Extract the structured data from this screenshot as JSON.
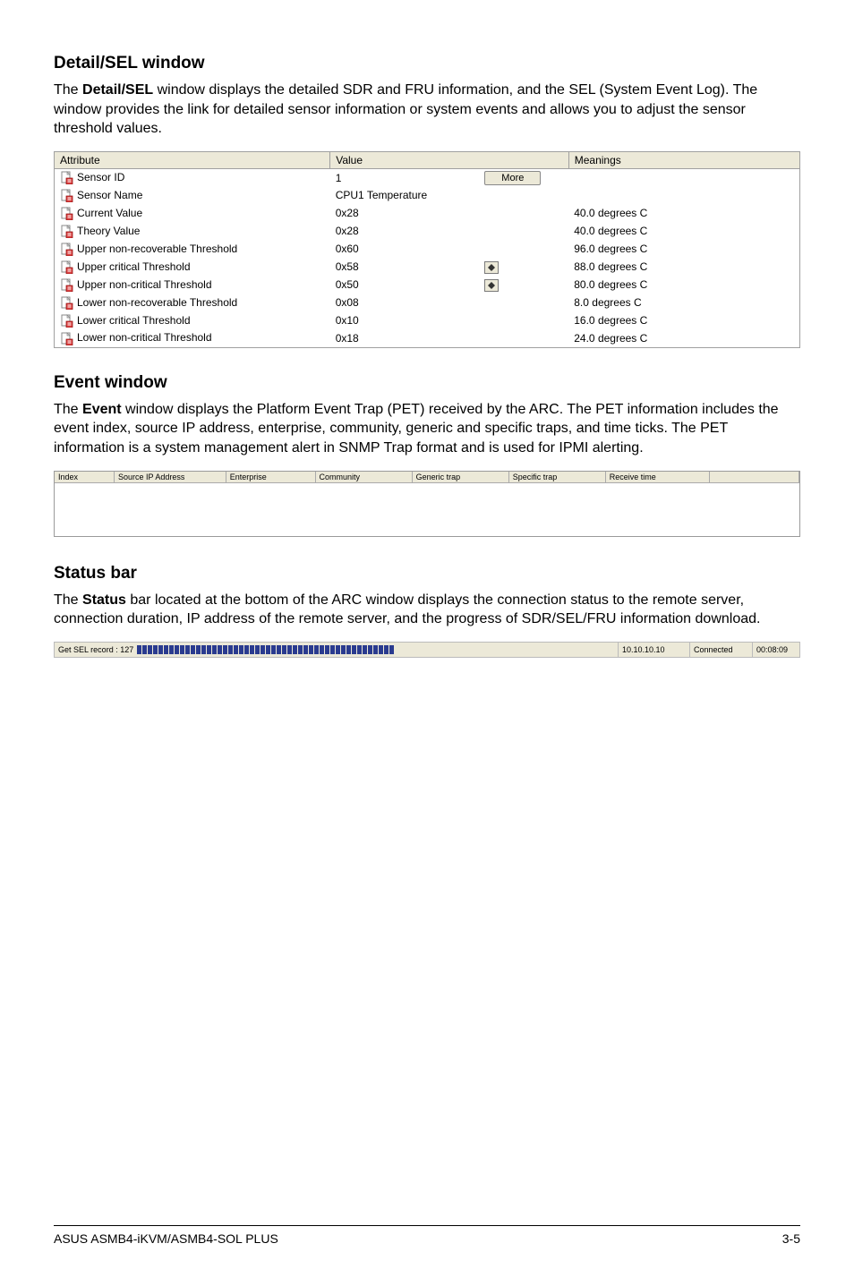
{
  "detailsel": {
    "title": "Detail/SEL window",
    "paragraph_before": "The ",
    "term": "Detail/SEL",
    "paragraph_after": " window displays the detailed SDR and FRU information, and the SEL (System Event Log). The window provides the link for detailed sensor information or system events and allows you to adjust the sensor threshold values.",
    "header_attribute": "Attribute",
    "header_value": "Value",
    "header_meanings": "Meanings",
    "more_label": "More",
    "rows": [
      {
        "attr": "Sensor ID",
        "value": "1",
        "extra": "more",
        "meaning": ""
      },
      {
        "attr": "Sensor Name",
        "value": "CPU1 Temperature",
        "extra": "",
        "meaning": ""
      },
      {
        "attr": "Current Value",
        "value": "0x28",
        "extra": "",
        "meaning": "40.0 degrees C"
      },
      {
        "attr": "Theory Value",
        "value": "0x28",
        "extra": "",
        "meaning": "40.0 degrees C"
      },
      {
        "attr": "Upper non-recoverable Threshold",
        "value": "0x60",
        "extra": "",
        "meaning": "96.0 degrees C"
      },
      {
        "attr": "Upper critical Threshold",
        "value": "0x58",
        "extra": "spin",
        "meaning": "88.0 degrees C"
      },
      {
        "attr": "Upper non-critical Threshold",
        "value": "0x50",
        "extra": "spin",
        "meaning": "80.0 degrees C"
      },
      {
        "attr": "Lower non-recoverable Threshold",
        "value": "0x08",
        "extra": "",
        "meaning": "8.0 degrees C"
      },
      {
        "attr": "Lower critical Threshold",
        "value": "0x10",
        "extra": "",
        "meaning": "16.0 degrees C"
      },
      {
        "attr": "Lower non-critical Threshold",
        "value": "0x18",
        "extra": "",
        "meaning": "24.0 degrees C"
      }
    ]
  },
  "event": {
    "title": "Event window",
    "paragraph_before": "The ",
    "term": "Event",
    "paragraph_after": " window displays the Platform Event Trap (PET) received by the ARC. The PET information includes the event index, source IP address, enterprise, community, generic and specific traps, and time ticks. The PET information is a system management alert in SNMP Trap format and is used for IPMI alerting.",
    "columns": [
      "Index",
      "Source IP Address",
      "Enterprise",
      "Community",
      "Generic trap",
      "Specific trap",
      "Receive time",
      ""
    ]
  },
  "status": {
    "title": "Status bar",
    "paragraph_before": "The ",
    "term": "Status",
    "paragraph_after": " bar located at the bottom of the ARC window displays the connection status to the remote server, connection duration, IP address of the remote server, and the progress of SDR/SEL/FRU information download.",
    "label": "Get SEL record : 127",
    "progress_blocks": 48,
    "ip": "10.10.10.10",
    "state": "Connected",
    "duration": "00:08:09"
  },
  "footer": {
    "left": "ASUS ASMB4-iKVM/ASMB4-SOL PLUS",
    "right": "3-5"
  }
}
